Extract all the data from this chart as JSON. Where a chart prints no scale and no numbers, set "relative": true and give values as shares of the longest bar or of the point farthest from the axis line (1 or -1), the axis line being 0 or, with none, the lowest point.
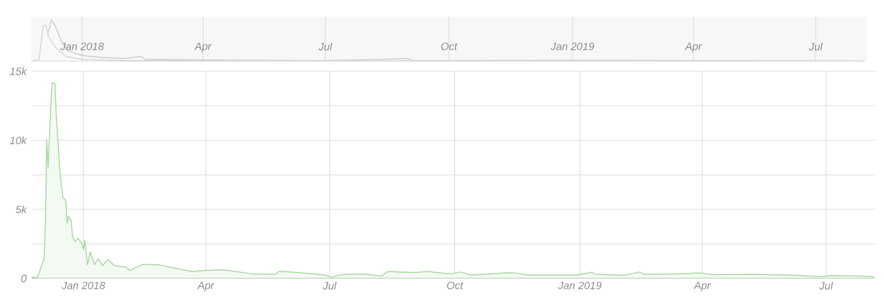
{
  "chart_data": [
    {
      "type": "area",
      "relative": true,
      "grid": "x",
      "tick_labels": "x",
      "xlim": [
        "2017-11-24",
        "2019-08-08"
      ],
      "xticks": [
        {
          "value": "2018-01-01",
          "label": "Jan 2018"
        },
        {
          "value": "2018-04-01",
          "label": "Apr"
        },
        {
          "value": "2018-07-01",
          "label": "Jul"
        },
        {
          "value": "2018-10-01",
          "label": "Oct"
        },
        {
          "value": "2019-01-01",
          "label": "Jan 2019"
        },
        {
          "value": "2019-04-01",
          "label": "Apr"
        },
        {
          "value": "2019-07-01",
          "label": "Jul"
        }
      ],
      "series": [
        {
          "color": "#cccccc",
          "x": [
            "2017-11-24",
            "2017-11-30",
            "2017-12-03",
            "2017-12-06",
            "2017-12-09",
            "2017-12-12",
            "2017-12-17",
            "2017-12-22",
            "2017-12-28",
            "2018-01-05",
            "2018-01-15",
            "2018-02-01",
            "2018-02-14",
            "2018-02-17",
            "2018-03-15",
            "2018-05-01",
            "2018-07-01",
            "2018-09-01",
            "2018-09-04",
            "2019-01-10",
            "2019-04-01",
            "2019-08-06"
          ],
          "values": [
            0,
            0.03,
            0.1,
            0.6,
            1.0,
            0.85,
            0.45,
            0.25,
            0.18,
            0.13,
            0.1,
            0.07,
            0.12,
            0.05,
            0.04,
            0.03,
            0.02,
            0.07,
            0.02,
            0.03,
            0.02,
            0.01
          ]
        },
        {
          "color": "#d6d6d6",
          "x": [
            "2017-11-24",
            "2017-11-30",
            "2017-12-03",
            "2017-12-05",
            "2017-12-07",
            "2017-12-12",
            "2017-12-20",
            "2018-01-01",
            "2018-02-01",
            "2019-08-06"
          ],
          "values": [
            0,
            0.05,
            0.85,
            0.88,
            0.6,
            0.35,
            0.12,
            0.05,
            0.02,
            0.01
          ]
        }
      ]
    },
    {
      "type": "area",
      "grid": true,
      "xlim": [
        "2017-11-24",
        "2019-08-06"
      ],
      "ylim": [
        0,
        15000
      ],
      "yticks": [
        0,
        {
          "value": 2500,
          "label": null
        },
        {
          "value": 5000,
          "label": "5k"
        },
        {
          "value": 7500,
          "label": null
        },
        {
          "value": 10000,
          "label": "10k"
        },
        {
          "value": 12500,
          "label": null
        },
        {
          "value": 15000,
          "label": "15k"
        }
      ],
      "xticks": [
        {
          "value": "2018-01-01",
          "label": "Jan 2018"
        },
        {
          "value": "2018-04-01",
          "label": "Apr"
        },
        {
          "value": "2018-07-01",
          "label": "Jul"
        },
        {
          "value": "2018-10-01",
          "label": "Oct"
        },
        {
          "value": "2019-01-01",
          "label": "Jan 2019"
        },
        {
          "value": "2019-04-01",
          "label": "Apr"
        },
        {
          "value": "2019-07-01",
          "label": "Jul"
        }
      ],
      "series": [
        {
          "color": "#a8d8a0",
          "x": [
            "2017-11-24",
            "2017-11-28",
            "2017-11-30",
            "2017-12-03",
            "2017-12-04",
            "2017-12-05",
            "2017-12-06",
            "2017-12-08",
            "2017-12-09",
            "2017-12-11",
            "2017-12-12",
            "2017-12-15",
            "2017-12-17",
            "2017-12-19",
            "2017-12-20",
            "2017-12-21",
            "2017-12-23",
            "2017-12-24",
            "2017-12-26",
            "2017-12-28",
            "2017-12-31",
            "2018-01-01",
            "2018-01-02",
            "2018-01-04",
            "2018-01-06",
            "2018-01-09",
            "2018-01-12",
            "2018-01-15",
            "2018-01-19",
            "2018-01-24",
            "2018-02-01",
            "2018-02-04",
            "2018-02-14",
            "2018-02-26",
            "2018-03-09",
            "2018-03-22",
            "2018-04-01",
            "2018-04-12",
            "2018-04-18",
            "2018-05-05",
            "2018-05-22",
            "2018-05-25",
            "2018-06-08",
            "2018-06-28",
            "2018-07-02",
            "2018-07-05",
            "2018-07-12",
            "2018-07-26",
            "2018-08-08",
            "2018-08-13",
            "2018-09-01",
            "2018-09-11",
            "2018-09-28",
            "2018-10-05",
            "2018-10-13",
            "2018-11-12",
            "2018-11-24",
            "2018-12-11",
            "2018-12-30",
            "2019-01-10",
            "2019-01-12",
            "2019-02-02",
            "2019-02-14",
            "2019-02-17",
            "2019-03-13",
            "2019-03-30",
            "2019-04-09",
            "2019-05-09",
            "2019-06-10",
            "2019-06-27",
            "2019-07-03",
            "2019-07-25",
            "2019-08-05"
          ],
          "values": [
            80,
            80,
            580,
            1420,
            4000,
            10000,
            8000,
            12500,
            14170,
            14080,
            11830,
            7330,
            5830,
            5670,
            4000,
            4500,
            4170,
            3000,
            2670,
            2920,
            2500,
            2080,
            2750,
            1000,
            1920,
            1000,
            1420,
            920,
            1370,
            920,
            830,
            580,
            1030,
            970,
            750,
            500,
            580,
            630,
            580,
            330,
            300,
            530,
            420,
            250,
            80,
            170,
            300,
            330,
            170,
            500,
            420,
            500,
            330,
            470,
            250,
            420,
            250,
            250,
            250,
            450,
            300,
            220,
            470,
            300,
            330,
            400,
            280,
            300,
            220,
            120,
            200,
            170,
            130
          ]
        }
      ]
    }
  ]
}
